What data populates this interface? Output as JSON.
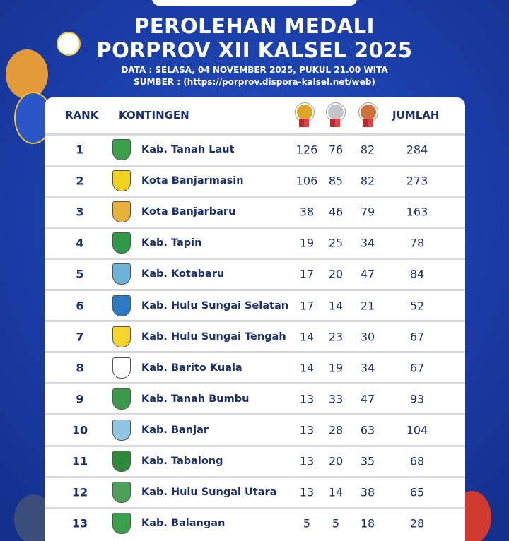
{
  "header": {
    "title": [
      "PEROLEHAN MEDALI",
      "PORPROV XII KALSEL 2025"
    ],
    "data": "DATA : SELASA, 04 NOVEMBER 2025, PUKUL 21.00 WITA",
    "source": "SUMBER : (https://porprov.dispora-kalsel.net/web)"
  },
  "table": {
    "headers": {
      "rank": "RANK",
      "team": "KONTINGEN",
      "total": "JUMLAH"
    },
    "rows": [
      [
        1,
        "Kab. Tanah Laut",
        126,
        76,
        82,
        284
      ],
      [
        2,
        "Kota Banjarmasin",
        106,
        85,
        82,
        273
      ],
      [
        3,
        "Kota Banjarbaru",
        38,
        46,
        79,
        163
      ],
      [
        4,
        "Kab. Tapin",
        19,
        25,
        34,
        78
      ],
      [
        5,
        "Kab. Kotabaru",
        17,
        20,
        47,
        84
      ],
      [
        6,
        "Kab. Hulu Sungai Selatan",
        17,
        14,
        21,
        52
      ],
      [
        7,
        "Kab. Hulu Sungai Tengah",
        14,
        23,
        30,
        67
      ],
      [
        8,
        "Kab. Barito Kuala",
        14,
        19,
        34,
        67
      ],
      [
        9,
        "Kab. Tanah Bumbu",
        13,
        33,
        47,
        93
      ],
      [
        10,
        "Kab. Banjar",
        13,
        28,
        63,
        104
      ],
      [
        11,
        "Kab. Tabalong",
        13,
        20,
        35,
        68
      ],
      [
        12,
        "Kab. Hulu Sungai Utara",
        13,
        14,
        38,
        65
      ],
      [
        13,
        "Kab. Balangan",
        5,
        5,
        18,
        28
      ]
    ]
  }
}
